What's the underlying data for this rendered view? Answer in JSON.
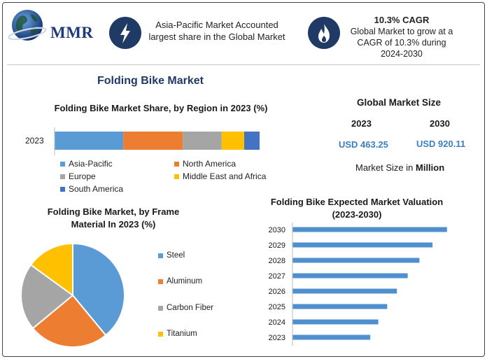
{
  "header": {
    "logo_text": "MMR",
    "icons": {
      "logo": "globe-icon",
      "left": "lightning-bolt-icon",
      "right": "flame-icon"
    },
    "left_text": "Asia-Pacific Market Accounted largest share in the Global Market",
    "cagr_title": "10.3% CAGR",
    "cagr_text": "Global Market to grow at a CAGR of 10.3% during 2024-2030"
  },
  "main_title": "Folding Bike Market",
  "global_market": {
    "title": "Global Market Size",
    "years": [
      "2023",
      "2030"
    ],
    "values": [
      "USD 463.25",
      "USD 920.11"
    ],
    "note_prefix": "Market Size in",
    "note_unit": "Million"
  },
  "colors": {
    "blue": "#5b9bd5",
    "orange": "#ed7d31",
    "gray": "#a5a5a5",
    "yellow": "#ffc000",
    "darkblue": "#4472c4",
    "bar": "#4f8fcf"
  },
  "chart_data": [
    {
      "type": "bar",
      "orientation": "horizontal-stacked",
      "title": "Folding Bike Market Share, by Region in 2023 (%)",
      "categories": [
        "2023"
      ],
      "series": [
        {
          "name": "Asia-Pacific",
          "values": [
            33.5
          ],
          "color": "#5b9bd5"
        },
        {
          "name": "North America",
          "values": [
            29.0
          ],
          "color": "#ed7d31"
        },
        {
          "name": "Europe",
          "values": [
            19.0
          ],
          "color": "#a5a5a5"
        },
        {
          "name": "Middle East and Africa",
          "values": [
            11.0
          ],
          "color": "#ffc000"
        },
        {
          "name": "South America",
          "values": [
            7.5
          ],
          "color": "#4472c4"
        }
      ],
      "legend": "bottom"
    },
    {
      "type": "pie",
      "title": "Folding Bike Market, by Frame Material In 2023 (%)",
      "labels": [
        "Steel",
        "Aluminum",
        "Carbon Fiber",
        "Titanium"
      ],
      "values": [
        39,
        25,
        21,
        15
      ],
      "colors": [
        "#5b9bd5",
        "#ed7d31",
        "#a5a5a5",
        "#ffc000"
      ],
      "legend": "right"
    },
    {
      "type": "bar",
      "orientation": "horizontal",
      "title": "Folding Bike Expected Market Valuation (2023-2030)",
      "categories": [
        "2030",
        "2029",
        "2028",
        "2027",
        "2026",
        "2025",
        "2024",
        "2023"
      ],
      "values": [
        920.11,
        834,
        756,
        686,
        622,
        564,
        511,
        463.25
      ],
      "color": "#4f8fcf",
      "xlim": [
        0,
        1000
      ],
      "grid": false
    }
  ]
}
